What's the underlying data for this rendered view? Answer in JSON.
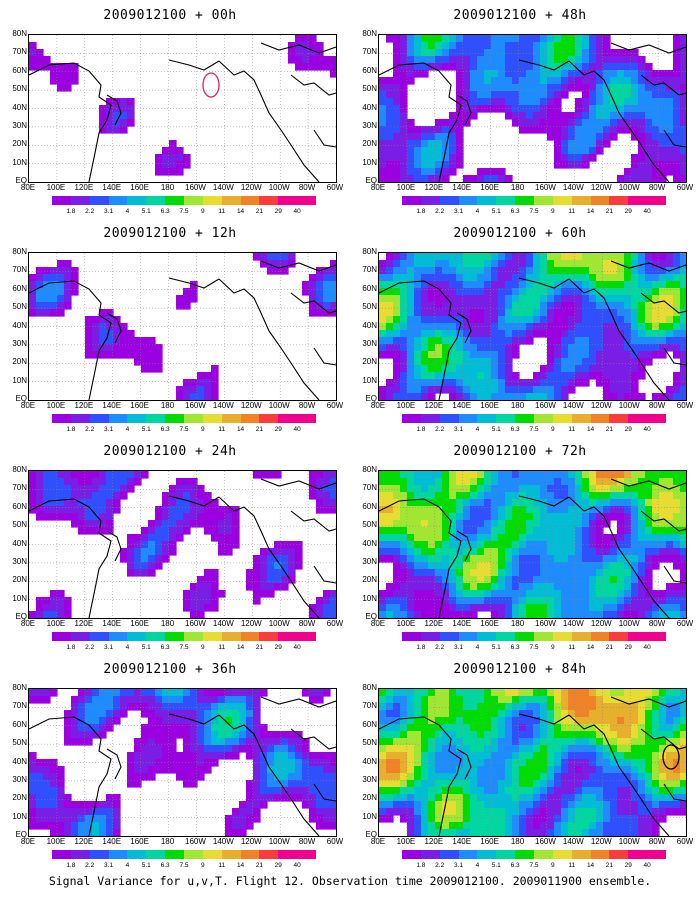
{
  "footer": "Signal Variance for u,v,T. Flight 12. Observation time 2009012100. 2009011900 ensemble.",
  "latitude_labels": [
    "80N",
    "70N",
    "60N",
    "50N",
    "40N",
    "30N",
    "20N",
    "10N",
    "EQ"
  ],
  "longitude_labels": [
    "80E",
    "100E",
    "120E",
    "140E",
    "160E",
    "180",
    "160W",
    "140W",
    "120W",
    "100W",
    "80W",
    "60W"
  ],
  "colorbar": {
    "levels": [
      "1.8",
      "2.2",
      "3.1",
      "4",
      "5.1",
      "6.3",
      "7.5",
      "9",
      "11",
      "14",
      "21",
      "29",
      "40"
    ],
    "colors": [
      "#9b00e0",
      "#7a1ee6",
      "#3050ff",
      "#1e8cff",
      "#00bcd4",
      "#00d6a0",
      "#00dc00",
      "#a0e632",
      "#e6dc32",
      "#e6af2d",
      "#f08228",
      "#fa3c3c",
      "#f0008c"
    ]
  },
  "panels": [
    {
      "title": "2009012100 + 00h",
      "intensity": 0.5,
      "cover": 0.9,
      "seed": 3,
      "has_circle": true
    },
    {
      "title": "2009012100 + 48h",
      "intensity": 1.6,
      "cover": 0.45,
      "seed": 7,
      "has_circle": false
    },
    {
      "title": "2009012100 + 12h",
      "intensity": 0.8,
      "cover": 0.8,
      "seed": 11,
      "has_circle": false
    },
    {
      "title": "2009012100 + 60h",
      "intensity": 1.9,
      "cover": 0.2,
      "seed": 13,
      "has_circle": false
    },
    {
      "title": "2009012100 + 24h",
      "intensity": 1.0,
      "cover": 0.65,
      "seed": 17,
      "has_circle": false
    },
    {
      "title": "2009012100 + 72h",
      "intensity": 2.2,
      "cover": 0.1,
      "seed": 19,
      "has_circle": false
    },
    {
      "title": "2009012100 + 36h",
      "intensity": 1.3,
      "cover": 0.55,
      "seed": 23,
      "has_circle": false
    },
    {
      "title": "2009012100 + 84h",
      "intensity": 2.5,
      "cover": 0.05,
      "seed": 29,
      "has_circle": true
    }
  ]
}
